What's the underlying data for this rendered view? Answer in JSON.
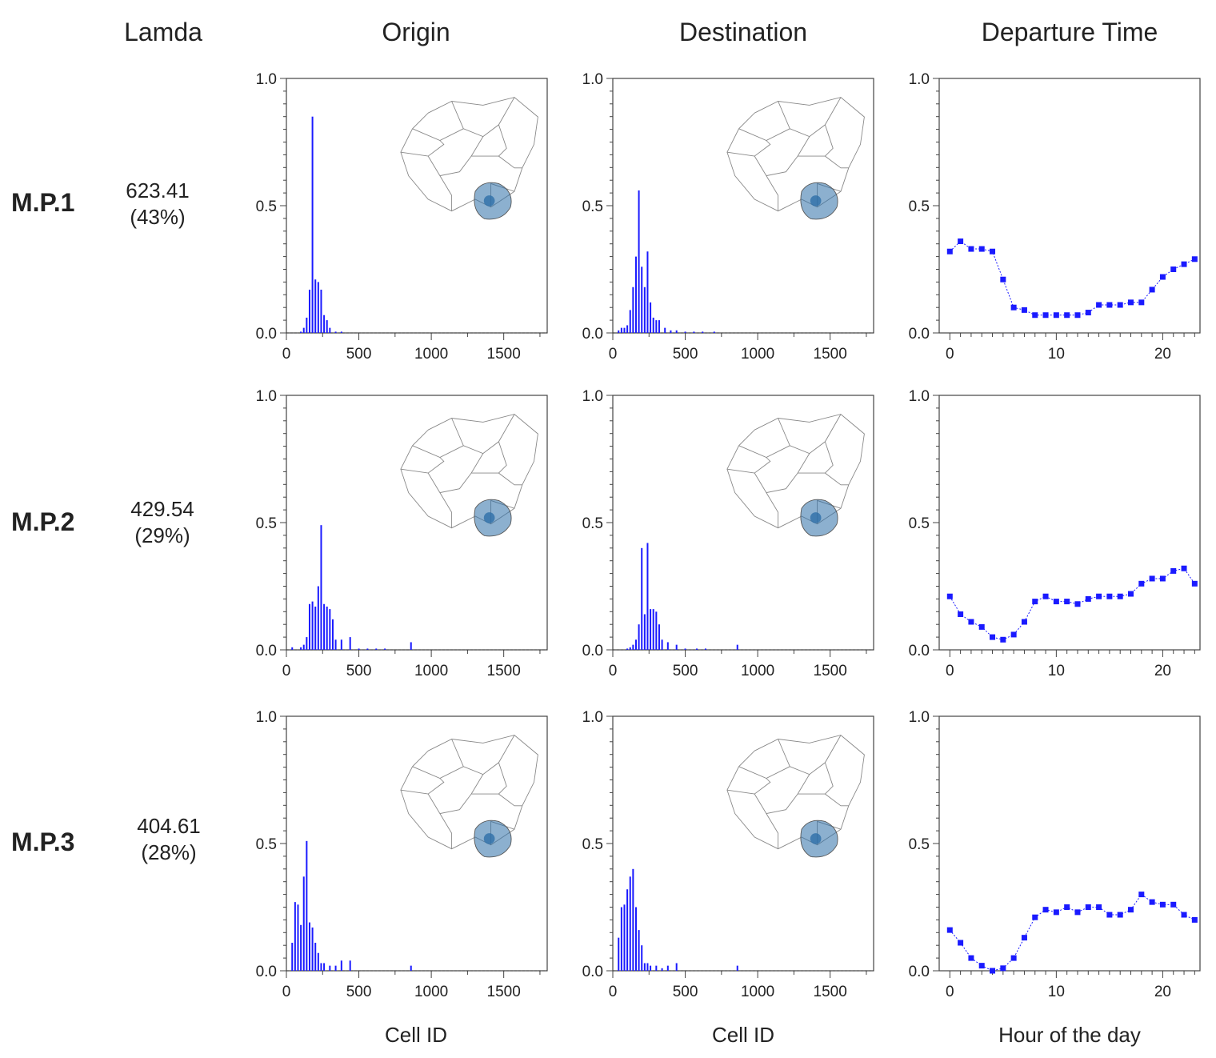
{
  "header": {
    "lambda_title": "Lamda",
    "origin_title": "Origin",
    "destination_title": "Destination",
    "departure_title": "Departure Time"
  },
  "rows": [
    {
      "label": "M.P.1",
      "lambda_value": "623.41",
      "lambda_share": "(43%)"
    },
    {
      "label": "M.P.2",
      "lambda_value": "429.54",
      "lambda_share": "(29%)"
    },
    {
      "label": "M.P.3",
      "lambda_value": "404.61",
      "lambda_share": "(28%)"
    }
  ],
  "footer": {
    "origin_xlabel": "Cell ID",
    "destination_xlabel": "Cell ID",
    "departure_xlabel": "Hour of the day"
  },
  "colors": {
    "series": "#1a1aff",
    "axis": "#444444",
    "map_fill": "#2e6fa8"
  },
  "chart_data": [
    {
      "type": "bar",
      "id": "origin-mp1",
      "title": "Origin",
      "row": "M.P.1",
      "xlabel": "Cell ID",
      "ylabel": "",
      "xlim": [
        0,
        1800
      ],
      "ylim": [
        0,
        1
      ],
      "xticks": [
        0,
        500,
        1000,
        1500
      ],
      "yticks": [
        0.0,
        0.5,
        1.0
      ],
      "ytick_labels": [
        "0.0",
        "0.5",
        "1.0"
      ],
      "x": [
        100,
        120,
        140,
        160,
        180,
        200,
        220,
        240,
        260,
        280,
        300,
        340,
        380
      ],
      "values": [
        0.005,
        0.02,
        0.06,
        0.17,
        0.85,
        0.21,
        0.2,
        0.17,
        0.07,
        0.05,
        0.02,
        0.005,
        0.005
      ]
    },
    {
      "type": "bar",
      "id": "destination-mp1",
      "title": "Destination",
      "row": "M.P.1",
      "xlabel": "Cell ID",
      "ylabel": "",
      "xlim": [
        0,
        1800
      ],
      "ylim": [
        0,
        1
      ],
      "xticks": [
        0,
        500,
        1000,
        1500
      ],
      "yticks": [
        0.0,
        0.5,
        1.0
      ],
      "ytick_labels": [
        "0.0",
        "0.5",
        "1.0"
      ],
      "x": [
        40,
        60,
        80,
        100,
        120,
        140,
        160,
        180,
        200,
        220,
        240,
        260,
        280,
        300,
        320,
        360,
        400,
        440,
        500,
        560,
        620,
        700
      ],
      "values": [
        0.01,
        0.02,
        0.02,
        0.03,
        0.09,
        0.18,
        0.3,
        0.56,
        0.26,
        0.18,
        0.32,
        0.12,
        0.06,
        0.05,
        0.05,
        0.02,
        0.01,
        0.01,
        0.005,
        0.005,
        0.005,
        0.005
      ]
    },
    {
      "type": "line",
      "id": "departure-mp1",
      "title": "Departure Time",
      "row": "M.P.1",
      "xlabel": "Hour of the day",
      "ylabel": "",
      "xlim": [
        -1,
        23.5
      ],
      "ylim": [
        0,
        1
      ],
      "xticks": [
        0,
        10,
        20
      ],
      "yticks": [
        0.0,
        0.5,
        1.0
      ],
      "ytick_labels": [
        "0.0",
        "0.5",
        "1.0"
      ],
      "x": [
        0,
        1,
        2,
        3,
        4,
        5,
        6,
        7,
        8,
        9,
        10,
        11,
        12,
        13,
        14,
        15,
        16,
        17,
        18,
        19,
        20,
        21,
        22,
        23
      ],
      "values": [
        0.32,
        0.36,
        0.33,
        0.33,
        0.32,
        0.21,
        0.1,
        0.09,
        0.07,
        0.07,
        0.07,
        0.07,
        0.07,
        0.08,
        0.11,
        0.11,
        0.11,
        0.12,
        0.12,
        0.17,
        0.22,
        0.25,
        0.27,
        0.29
      ]
    },
    {
      "type": "bar",
      "id": "origin-mp2",
      "title": "Origin",
      "row": "M.P.2",
      "xlabel": "Cell ID",
      "ylabel": "",
      "xlim": [
        0,
        1800
      ],
      "ylim": [
        0,
        1
      ],
      "xticks": [
        0,
        500,
        1000,
        1500
      ],
      "yticks": [
        0.0,
        0.5,
        1.0
      ],
      "ytick_labels": [
        "0.0",
        "0.5",
        "1.0"
      ],
      "x": [
        40,
        100,
        120,
        140,
        160,
        180,
        200,
        220,
        240,
        260,
        280,
        300,
        320,
        340,
        380,
        440,
        500,
        560,
        620,
        680,
        860
      ],
      "values": [
        0.01,
        0.01,
        0.02,
        0.05,
        0.18,
        0.19,
        0.17,
        0.25,
        0.49,
        0.18,
        0.17,
        0.16,
        0.12,
        0.04,
        0.04,
        0.05,
        0.005,
        0.005,
        0.005,
        0.005,
        0.03
      ]
    },
    {
      "type": "bar",
      "id": "destination-mp2",
      "title": "Destination",
      "row": "M.P.2",
      "xlabel": "Cell ID",
      "ylabel": "",
      "xlim": [
        0,
        1800
      ],
      "ylim": [
        0,
        1
      ],
      "xticks": [
        0,
        500,
        1000,
        1500
      ],
      "yticks": [
        0.0,
        0.5,
        1.0
      ],
      "ytick_labels": [
        "0.0",
        "0.5",
        "1.0"
      ],
      "x": [
        100,
        120,
        140,
        160,
        180,
        200,
        220,
        240,
        260,
        280,
        300,
        320,
        340,
        380,
        440,
        500,
        580,
        640,
        860
      ],
      "values": [
        0.005,
        0.01,
        0.02,
        0.04,
        0.1,
        0.4,
        0.14,
        0.42,
        0.16,
        0.16,
        0.15,
        0.1,
        0.04,
        0.03,
        0.02,
        0.005,
        0.005,
        0.005,
        0.02
      ]
    },
    {
      "type": "line",
      "id": "departure-mp2",
      "title": "Departure Time",
      "row": "M.P.2",
      "xlabel": "Hour of the day",
      "ylabel": "",
      "xlim": [
        -1,
        23.5
      ],
      "ylim": [
        0,
        1
      ],
      "xticks": [
        0,
        10,
        20
      ],
      "yticks": [
        0.0,
        0.5,
        1.0
      ],
      "ytick_labels": [
        "0.0",
        "0.5",
        "1.0"
      ],
      "x": [
        0,
        1,
        2,
        3,
        4,
        5,
        6,
        7,
        8,
        9,
        10,
        11,
        12,
        13,
        14,
        15,
        16,
        17,
        18,
        19,
        20,
        21,
        22,
        23
      ],
      "values": [
        0.21,
        0.14,
        0.11,
        0.09,
        0.05,
        0.04,
        0.06,
        0.11,
        0.19,
        0.21,
        0.19,
        0.19,
        0.18,
        0.2,
        0.21,
        0.21,
        0.21,
        0.22,
        0.26,
        0.28,
        0.28,
        0.31,
        0.32,
        0.26
      ]
    },
    {
      "type": "bar",
      "id": "origin-mp3",
      "title": "Origin",
      "row": "M.P.3",
      "xlabel": "Cell ID",
      "ylabel": "",
      "xlim": [
        0,
        1800
      ],
      "ylim": [
        0,
        1
      ],
      "xticks": [
        0,
        500,
        1000,
        1500
      ],
      "yticks": [
        0.0,
        0.5,
        1.0
      ],
      "ytick_labels": [
        "0.0",
        "0.5",
        "1.0"
      ],
      "x": [
        40,
        60,
        80,
        100,
        120,
        140,
        160,
        180,
        200,
        220,
        240,
        260,
        300,
        340,
        380,
        440,
        860
      ],
      "values": [
        0.11,
        0.27,
        0.26,
        0.18,
        0.37,
        0.51,
        0.19,
        0.17,
        0.11,
        0.07,
        0.03,
        0.03,
        0.02,
        0.02,
        0.04,
        0.04,
        0.02
      ]
    },
    {
      "type": "bar",
      "id": "destination-mp3",
      "title": "Destination",
      "row": "M.P.3",
      "xlabel": "Cell ID",
      "ylabel": "",
      "xlim": [
        0,
        1800
      ],
      "ylim": [
        0,
        1
      ],
      "xticks": [
        0,
        500,
        1000,
        1500
      ],
      "yticks": [
        0.0,
        0.5,
        1.0
      ],
      "ytick_labels": [
        "0.0",
        "0.5",
        "1.0"
      ],
      "x": [
        40,
        60,
        80,
        100,
        120,
        140,
        160,
        180,
        200,
        220,
        240,
        260,
        300,
        340,
        380,
        440,
        860
      ],
      "values": [
        0.13,
        0.25,
        0.26,
        0.32,
        0.37,
        0.4,
        0.25,
        0.16,
        0.1,
        0.03,
        0.03,
        0.02,
        0.02,
        0.01,
        0.02,
        0.03,
        0.02
      ]
    },
    {
      "type": "line",
      "id": "departure-mp3",
      "title": "Departure Time",
      "row": "M.P.3",
      "xlabel": "Hour of the day",
      "ylabel": "",
      "xlim": [
        -1,
        23.5
      ],
      "ylim": [
        0,
        1
      ],
      "xticks": [
        0,
        10,
        20
      ],
      "yticks": [
        0.0,
        0.5,
        1.0
      ],
      "ytick_labels": [
        "0.0",
        "0.5",
        "1.0"
      ],
      "x": [
        0,
        1,
        2,
        3,
        4,
        5,
        6,
        7,
        8,
        9,
        10,
        11,
        12,
        13,
        14,
        15,
        16,
        17,
        18,
        19,
        20,
        21,
        22,
        23
      ],
      "values": [
        0.16,
        0.11,
        0.05,
        0.02,
        0.0,
        0.01,
        0.05,
        0.13,
        0.21,
        0.24,
        0.23,
        0.25,
        0.23,
        0.25,
        0.25,
        0.22,
        0.22,
        0.24,
        0.3,
        0.27,
        0.26,
        0.26,
        0.22,
        0.2
      ]
    }
  ]
}
